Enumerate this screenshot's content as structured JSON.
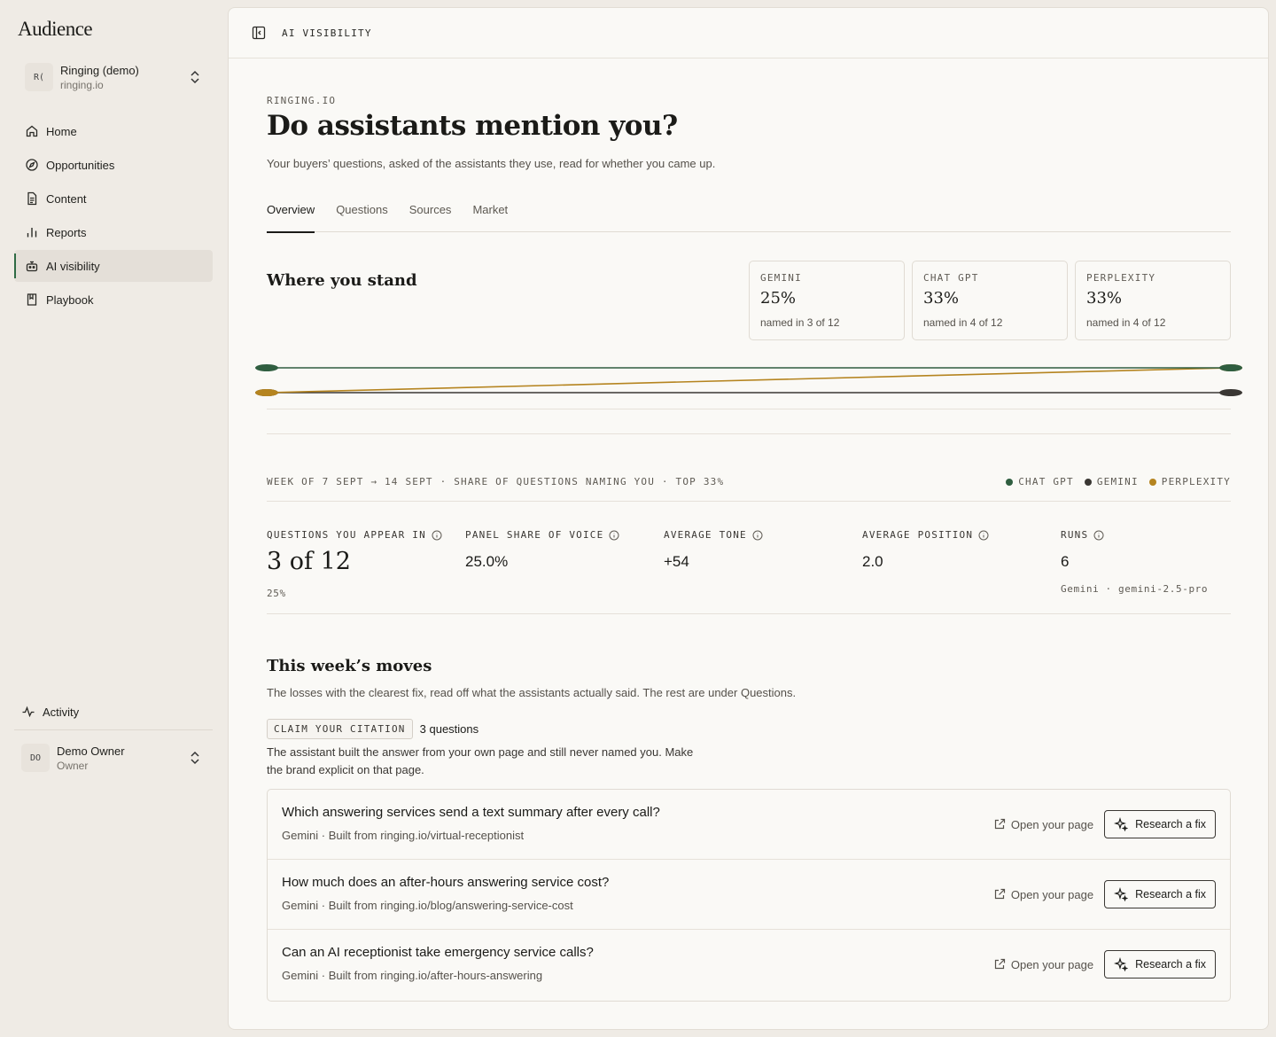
{
  "sidebar": {
    "brand": "Audience",
    "org": {
      "initials": "R(",
      "name": "Ringing (demo)",
      "domain": "ringing.io"
    },
    "nav": [
      {
        "label": "Home",
        "icon": "home-icon"
      },
      {
        "label": "Opportunities",
        "icon": "compass-icon"
      },
      {
        "label": "Content",
        "icon": "document-icon"
      },
      {
        "label": "Reports",
        "icon": "bar-chart-icon"
      },
      {
        "label": "AI visibility",
        "icon": "robot-icon",
        "active": true
      },
      {
        "label": "Playbook",
        "icon": "book-icon"
      }
    ],
    "activity": "Activity",
    "owner": {
      "initials": "DO",
      "name": "Demo Owner",
      "role": "Owner"
    }
  },
  "topbar": {
    "title": "AI VISIBILITY"
  },
  "header": {
    "eyebrow": "RINGING.IO",
    "title": "Do assistants mention you?",
    "subtitle": "Your buyers’ questions, asked of the assistants they use, read for whether you came up."
  },
  "tabs": [
    "Overview",
    "Questions",
    "Sources",
    "Market"
  ],
  "stand": {
    "title": "Where you stand",
    "cards": [
      {
        "label": "GEMINI",
        "value": "25%",
        "note": "named in 3 of 12"
      },
      {
        "label": "CHAT GPT",
        "value": "33%",
        "note": "named in 4 of 12"
      },
      {
        "label": "PERPLEXITY",
        "value": "33%",
        "note": "named in 4 of 12"
      }
    ]
  },
  "chart_data": {
    "type": "line",
    "x": [
      "7 Sept",
      "14 Sept"
    ],
    "series": [
      {
        "name": "CHAT GPT",
        "color": "#2f5e40",
        "values": [
          33,
          33
        ]
      },
      {
        "name": "GEMINI",
        "color": "#3a3733",
        "values": [
          25,
          25
        ]
      },
      {
        "name": "PERPLEXITY",
        "color": "#b5841f",
        "values": [
          25,
          33
        ]
      }
    ],
    "ylim": [
      25,
      33
    ],
    "caption": "WEEK OF 7 SEPT → 14 SEPT · SHARE OF QUESTIONS NAMING YOU · TOP 33%",
    "legend": [
      "CHAT GPT",
      "GEMINI",
      "PERPLEXITY"
    ],
    "legend_position": "right"
  },
  "metrics": [
    {
      "label": "QUESTIONS YOU APPEAR IN",
      "value": "3 of 12",
      "sub": "25%"
    },
    {
      "label": "PANEL SHARE OF VOICE",
      "value": "25.0%",
      "sub": ""
    },
    {
      "label": "AVERAGE TONE",
      "value": "+54",
      "sub": ""
    },
    {
      "label": "AVERAGE POSITION",
      "value": "2.0",
      "sub": ""
    },
    {
      "label": "RUNS",
      "value": "6",
      "sub": "Gemini · gemini-2.5-pro"
    }
  ],
  "moves": {
    "title": "This week’s moves",
    "subtitle": "The losses with the clearest fix, read off what the assistants actually said. The rest are under Questions.",
    "tag": "CLAIM YOUR CITATION",
    "count": "3 questions",
    "description": "The assistant built the answer from your own page and still never named you. Make the brand explicit on that page.",
    "open_label": "Open your page",
    "fix_label": "Research a fix",
    "questions": [
      {
        "title": "Which answering services send a text summary after every call?",
        "meta": "Gemini · Built from ringing.io/virtual-receptionist"
      },
      {
        "title": "How much does an after-hours answering service cost?",
        "meta": "Gemini · Built from ringing.io/blog/answering-service-cost"
      },
      {
        "title": "Can an AI receptionist take emergency service calls?",
        "meta": "Gemini · Built from ringing.io/after-hours-answering"
      }
    ]
  }
}
